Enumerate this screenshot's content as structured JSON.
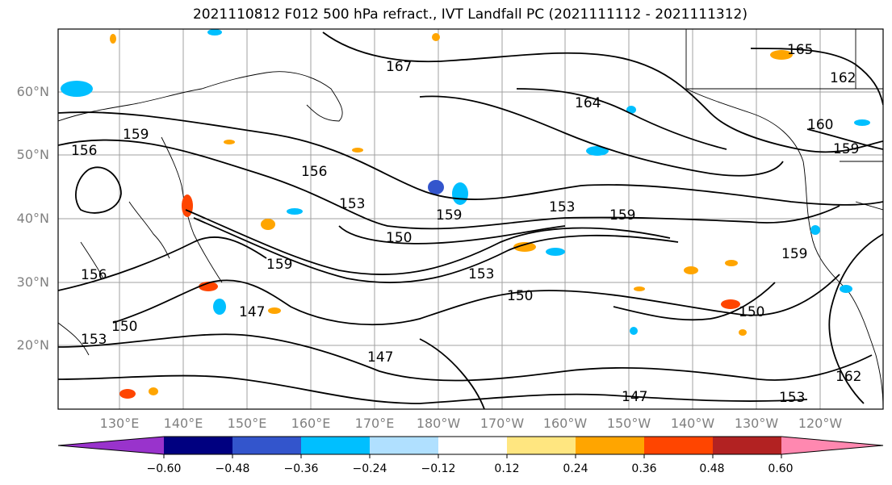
{
  "title": "2021110812 F012 500 hPa refract., IVT Landfall PC (2021111112 - 2021111312)",
  "lat_labels": [
    "60°N",
    "50°N",
    "40°N",
    "30°N",
    "20°N"
  ],
  "lon_labels": [
    "130°E",
    "140°E",
    "150°E",
    "160°E",
    "170°E",
    "180°W",
    "170°W",
    "160°W",
    "150°W",
    "140°W",
    "130°W",
    "120°W"
  ],
  "colorbar": {
    "ticks": [
      "−0.60",
      "−0.48",
      "−0.36",
      "−0.24",
      "−0.12",
      "0.12",
      "0.24",
      "0.36",
      "0.48",
      "0.60"
    ],
    "colors": [
      "#9933cc",
      "#000080",
      "#3355cc",
      "#00bfff",
      "#b0e0ff",
      "#ffffff",
      "#ffe680",
      "#ffa500",
      "#ff4500",
      "#b22222",
      "#ff88b0"
    ]
  },
  "contour_labels": [
    "167",
    "165",
    "162",
    "159",
    "156",
    "153",
    "150",
    "147",
    "164",
    "160"
  ]
}
